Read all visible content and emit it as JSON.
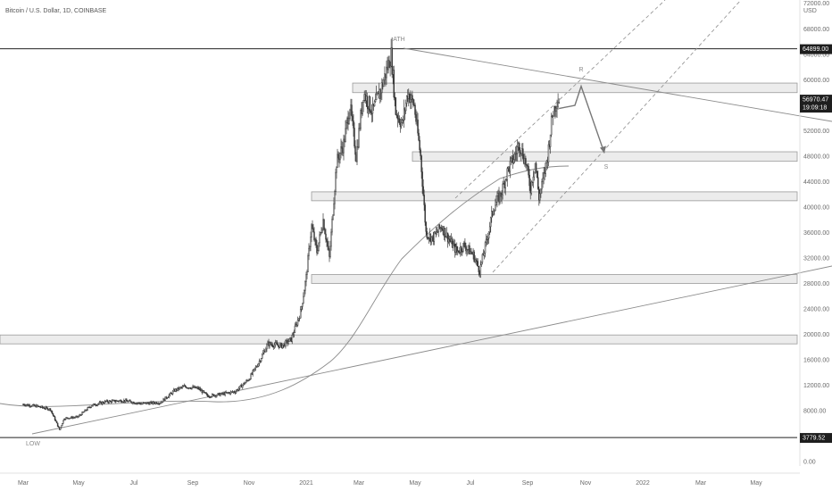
{
  "header": {
    "title": "Bitcoin / U.S. Dollar, 1D, COINBASE"
  },
  "yaxis": {
    "currency": "USD",
    "top_tick": "72000.00",
    "ticks": [
      "68000.00",
      "64000.00",
      "60000.00",
      "56000.00",
      "52000.00",
      "48000.00",
      "44000.00",
      "40000.00",
      "36000.00",
      "32000.00",
      "28000.00",
      "24000.00",
      "20000.00",
      "16000.00",
      "12000.00",
      "8000.00",
      "0.00"
    ],
    "price_tag": {
      "price": "56970.47",
      "countdown": "19:09:18"
    },
    "ath_tag": "64899.00",
    "low_tag": "3779.52"
  },
  "xaxis": {
    "ticks": [
      "Mar",
      "May",
      "Jul",
      "Sep",
      "Nov",
      "2021",
      "Mar",
      "May",
      "Jul",
      "Sep",
      "Nov",
      "2022",
      "Mar",
      "May"
    ]
  },
  "annotations": {
    "ath": "ATH",
    "low": "LOW",
    "r": "R",
    "s": "S"
  },
  "colors": {
    "candles": "#3a3a3a",
    "lines": "#8c8c8c",
    "zone_fill": "#ececec",
    "zone_stroke": "#9a9a9a",
    "tag_bg": "#1e1e1e",
    "tag_text": "#ffffff"
  },
  "chart_data": {
    "type": "candlestick",
    "title": "Bitcoin / U.S. Dollar, 1D, COINBASE",
    "ylabel": "USD",
    "ylim": [
      0,
      72000
    ],
    "x_ticks": [
      "Mar",
      "May",
      "Jul",
      "Sep",
      "Nov",
      "2021",
      "Mar",
      "May",
      "Jul",
      "Sep",
      "Nov",
      "2022",
      "Mar",
      "May"
    ],
    "price_anchors": [
      {
        "d": 0,
        "p": 9000
      },
      {
        "d": 15,
        "p": 8700
      },
      {
        "d": 30,
        "p": 8200
      },
      {
        "d": 40,
        "p": 5000
      },
      {
        "d": 45,
        "p": 6800
      },
      {
        "d": 60,
        "p": 7000
      },
      {
        "d": 75,
        "p": 8800
      },
      {
        "d": 90,
        "p": 9400
      },
      {
        "d": 110,
        "p": 9600
      },
      {
        "d": 130,
        "p": 9100
      },
      {
        "d": 150,
        "p": 9300
      },
      {
        "d": 165,
        "p": 11200
      },
      {
        "d": 175,
        "p": 11800
      },
      {
        "d": 190,
        "p": 11500
      },
      {
        "d": 200,
        "p": 10300
      },
      {
        "d": 215,
        "p": 10600
      },
      {
        "d": 230,
        "p": 11000
      },
      {
        "d": 245,
        "p": 13000
      },
      {
        "d": 255,
        "p": 15500
      },
      {
        "d": 265,
        "p": 18500
      },
      {
        "d": 280,
        "p": 18200
      },
      {
        "d": 290,
        "p": 19200
      },
      {
        "d": 300,
        "p": 23500
      },
      {
        "d": 306,
        "p": 29000
      },
      {
        "d": 312,
        "p": 37000
      },
      {
        "d": 318,
        "p": 33000
      },
      {
        "d": 325,
        "p": 38000
      },
      {
        "d": 332,
        "p": 32000
      },
      {
        "d": 340,
        "p": 47000
      },
      {
        "d": 348,
        "p": 50000
      },
      {
        "d": 355,
        "p": 56000
      },
      {
        "d": 362,
        "p": 48000
      },
      {
        "d": 370,
        "p": 58000
      },
      {
        "d": 380,
        "p": 55000
      },
      {
        "d": 390,
        "p": 59000
      },
      {
        "d": 400,
        "p": 64000
      },
      {
        "d": 405,
        "p": 55000
      },
      {
        "d": 412,
        "p": 53000
      },
      {
        "d": 418,
        "p": 58000
      },
      {
        "d": 425,
        "p": 56000
      },
      {
        "d": 432,
        "p": 48000
      },
      {
        "d": 438,
        "p": 36000
      },
      {
        "d": 445,
        "p": 35000
      },
      {
        "d": 455,
        "p": 37000
      },
      {
        "d": 463,
        "p": 35000
      },
      {
        "d": 472,
        "p": 33000
      },
      {
        "d": 480,
        "p": 34000
      },
      {
        "d": 490,
        "p": 32500
      },
      {
        "d": 497,
        "p": 30000
      },
      {
        "d": 505,
        "p": 35000
      },
      {
        "d": 512,
        "p": 40000
      },
      {
        "d": 520,
        "p": 42000
      },
      {
        "d": 528,
        "p": 46000
      },
      {
        "d": 535,
        "p": 48000
      },
      {
        "d": 540,
        "p": 50000
      },
      {
        "d": 547,
        "p": 47000
      },
      {
        "d": 552,
        "p": 43000
      },
      {
        "d": 557,
        "p": 47000
      },
      {
        "d": 561,
        "p": 41500
      },
      {
        "d": 565,
        "p": 44000
      },
      {
        "d": 570,
        "p": 48000
      },
      {
        "d": 575,
        "p": 54500
      },
      {
        "d": 580,
        "p": 57000
      },
      {
        "d": 582,
        "p": 56970
      }
    ],
    "levels": {
      "ath": 64899,
      "low": 3779.52
    },
    "zones": [
      {
        "from": 58000,
        "to": 59500,
        "start": "Mar 2021"
      },
      {
        "from": 47200,
        "to": 48700,
        "start": "May 2021"
      },
      {
        "from": 41000,
        "to": 42400,
        "start": "Jan 2021"
      },
      {
        "from": 28000,
        "to": 29400,
        "start": "Jan 2021"
      },
      {
        "from": 18500,
        "to": 19900,
        "start": "Mar 2020"
      }
    ],
    "projection": {
      "r_target": 59000,
      "s_target": 48500
    }
  }
}
